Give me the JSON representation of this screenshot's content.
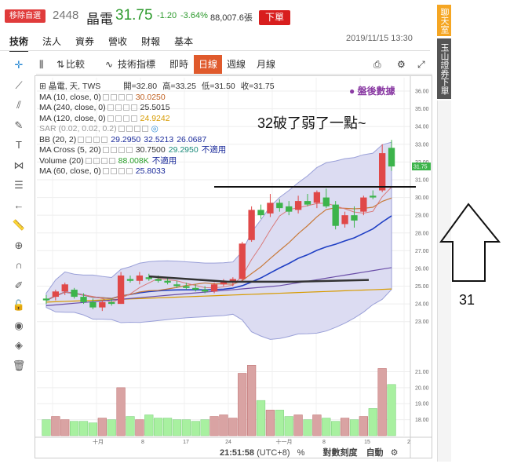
{
  "header": {
    "remove_label": "移除自選",
    "code": "2448",
    "name": "晶電",
    "price": "31.75",
    "change": "-1.20",
    "change_pct": "-3.64%",
    "volume": "88,007.6張",
    "order_label": "下單",
    "datetime": "2019/11/15 13:30"
  },
  "tabs": [
    "技術",
    "法人",
    "資券",
    "營收",
    "財報",
    "基本"
  ],
  "left_toolbar_icons": [
    "crosshair-icon",
    "line-icon",
    "parallel-icon",
    "brush-icon",
    "text-icon",
    "pattern-icon",
    "fib-icon",
    "arrow-left-icon",
    "ruler-icon",
    "zoom-in-icon",
    "magnet-icon",
    "lock-pencil-icon",
    "lock-icon",
    "eye-icon",
    "layers-icon",
    "trash-icon"
  ],
  "chart_toolbar": {
    "compare": "比較",
    "indicators": "技術指標",
    "realtime": "即時",
    "daily": "日線",
    "weekly": "週線",
    "monthly": "月線"
  },
  "legend": {
    "title": "晶電, 天, TWS",
    "open_label": "開=32.80",
    "high_label": "高=33.25",
    "low_label": "低=31.50",
    "close_label": "收=31.75",
    "rows": [
      {
        "label": "MA (10, close, 0)",
        "values": [
          "30.0250"
        ],
        "color": "#c06020"
      },
      {
        "label": "MA (240, close, 0)",
        "values": [
          "25.5015"
        ],
        "color": "#333333"
      },
      {
        "label": "MA (120, close, 0)",
        "values": [
          "24.9242"
        ],
        "color": "#d79b00"
      },
      {
        "label": "SAR (0.02, 0.02, 0.2)",
        "values": [
          "◎"
        ],
        "color": "#2a8ad4"
      },
      {
        "label": "BB (20, 2)",
        "values": [
          "29.2950",
          "32.5213",
          "26.0687"
        ],
        "color": "#1a2a9a"
      },
      {
        "label": "MA Cross (5, 20)",
        "values": [
          "30.7500",
          "29.2950",
          "不適用"
        ],
        "color": "#333333"
      },
      {
        "label": "Volume (20)",
        "values": [
          "88.008K",
          "不適用"
        ],
        "color": "#2aa02a"
      },
      {
        "label": "MA (60, close, 0)",
        "values": [
          "25.8033"
        ],
        "color": "#1a2a9a"
      }
    ]
  },
  "watermark": "● 盤後數據",
  "annotation": "32破了弱了一點~",
  "arrow_label": "31",
  "side": {
    "chat": "聊天室",
    "esun": "玉山證券下單"
  },
  "bottom_bar": {
    "time": "21:51:58",
    "tz": "(UTC+8)",
    "pct": "%",
    "log": "對數刻度",
    "auto": "自動"
  },
  "colors": {
    "up": "#e04848",
    "down": "#3cb44b",
    "accent": "#e05a2c",
    "band": "#d8d8f0"
  },
  "chart_data": {
    "type": "candlestick",
    "price_ticks": [
      "36.00",
      "35.00",
      "34.00",
      "33.00",
      "32.00",
      "31.00",
      "30.00",
      "29.00",
      "28.00",
      "27.00",
      "26.00",
      "25.00",
      "24.00",
      "23.00"
    ],
    "current_price_tag": "31.75",
    "volume_ticks": [
      "21.00",
      "20.00",
      "19.00",
      "18.00"
    ],
    "x_labels": [
      "十月",
      "8",
      "17",
      "24",
      "十一月",
      "8",
      "15",
      "2"
    ],
    "ohlc": [
      [
        24.3,
        24.5,
        24.0,
        24.2
      ],
      [
        24.4,
        24.8,
        24.2,
        24.7
      ],
      [
        24.7,
        25.2,
        24.5,
        25.1
      ],
      [
        24.8,
        24.9,
        24.3,
        24.4
      ],
      [
        24.4,
        24.6,
        24.0,
        24.1
      ],
      [
        24.1,
        24.3,
        23.7,
        23.8
      ],
      [
        23.8,
        24.2,
        23.6,
        24.1
      ],
      [
        24.1,
        24.3,
        23.9,
        24.0
      ],
      [
        24.0,
        25.8,
        24.0,
        25.6
      ],
      [
        25.4,
        25.6,
        25.2,
        25.3
      ],
      [
        25.3,
        25.8,
        25.1,
        25.6
      ],
      [
        25.5,
        25.7,
        25.3,
        25.4
      ],
      [
        25.4,
        25.6,
        25.2,
        25.3
      ],
      [
        25.3,
        25.5,
        25.1,
        25.2
      ],
      [
        25.1,
        25.3,
        24.9,
        25.0
      ],
      [
        25.0,
        25.2,
        24.8,
        24.9
      ],
      [
        24.9,
        25.1,
        24.7,
        24.8
      ],
      [
        24.8,
        25.0,
        24.6,
        24.7
      ],
      [
        24.7,
        25.2,
        24.6,
        25.1
      ],
      [
        25.1,
        25.4,
        25.0,
        25.3
      ],
      [
        25.2,
        25.5,
        25.0,
        25.4
      ],
      [
        25.4,
        27.5,
        25.3,
        27.4
      ],
      [
        27.6,
        29.5,
        27.5,
        29.3
      ],
      [
        29.3,
        29.6,
        28.8,
        29.0
      ],
      [
        29.1,
        30.2,
        28.9,
        29.7
      ],
      [
        29.7,
        29.9,
        29.2,
        29.4
      ],
      [
        29.5,
        29.8,
        29.0,
        29.2
      ],
      [
        29.3,
        30.1,
        29.1,
        29.8
      ],
      [
        29.8,
        30.2,
        29.5,
        29.6
      ],
      [
        29.7,
        30.4,
        29.4,
        30.3
      ],
      [
        30.0,
        30.5,
        29.4,
        29.5
      ],
      [
        29.6,
        29.8,
        28.2,
        28.4
      ],
      [
        28.5,
        29.2,
        28.3,
        29.0
      ],
      [
        29.0,
        29.5,
        28.3,
        28.7
      ],
      [
        29.2,
        30.1,
        29.0,
        30.0
      ],
      [
        30.1,
        30.4,
        29.9,
        30.0
      ],
      [
        30.4,
        33.0,
        30.3,
        32.5
      ],
      [
        32.8,
        33.25,
        31.5,
        31.75
      ]
    ],
    "volume": [
      18.0,
      18.2,
      18.0,
      17.9,
      17.9,
      17.8,
      18.1,
      18.0,
      20.0,
      18.2,
      18.0,
      18.3,
      18.1,
      18.1,
      18.0,
      18.0,
      17.9,
      18.0,
      18.2,
      18.3,
      18.1,
      20.9,
      21.4,
      19.2,
      18.6,
      18.6,
      18.2,
      18.3,
      18.0,
      18.3,
      18.1,
      17.9,
      18.1,
      18.0,
      18.2,
      18.7,
      21.2,
      20.2
    ],
    "horizontal_lines": [
      30.6,
      25.3
    ]
  }
}
